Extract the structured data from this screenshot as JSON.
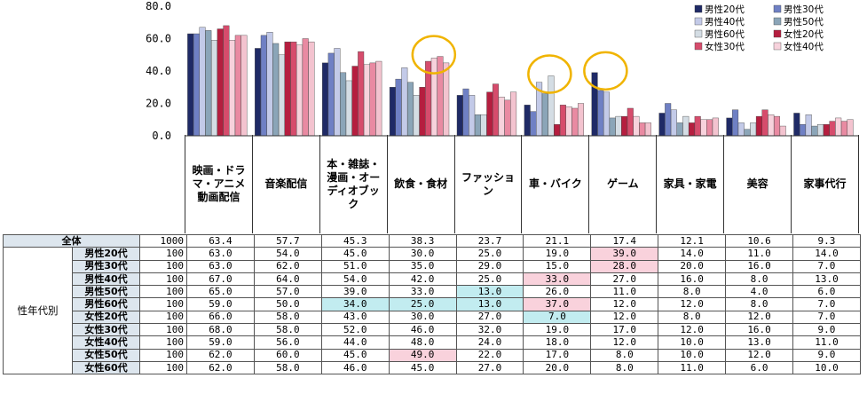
{
  "chart_data": {
    "type": "bar",
    "yticks": [
      "0.0",
      "20.0",
      "40.0",
      "60.0",
      "80.0"
    ],
    "ylim": [
      0,
      80
    ],
    "categories": [
      "映画・ドラマ・アニメ動画配信",
      "音楽配信",
      "本・雑誌・漫画・オーディオブック",
      "飲食・食材",
      "ファッション",
      "車・バイク",
      "ゲーム",
      "家具・家電",
      "美容",
      "家事代行"
    ],
    "series": [
      {
        "name": "男性20代",
        "color": "#1f2a66",
        "values": [
          63,
          54,
          45,
          30,
          25,
          19,
          39,
          14,
          11,
          14
        ]
      },
      {
        "name": "男性30代",
        "color": "#6f80c4",
        "values": [
          63,
          62,
          51,
          35,
          29,
          15,
          28,
          20,
          16,
          7
        ]
      },
      {
        "name": "男性40代",
        "color": "#c3cae8",
        "values": [
          67,
          64,
          54,
          42,
          25,
          33,
          27,
          16,
          8,
          13
        ]
      },
      {
        "name": "男性50代",
        "color": "#8ba5b8",
        "values": [
          65,
          57,
          39,
          33,
          13,
          26,
          11,
          8,
          4,
          6
        ]
      },
      {
        "name": "男性60代",
        "color": "#d4dde4",
        "values": [
          59,
          50,
          34,
          25,
          13,
          37,
          12,
          12,
          8,
          7
        ]
      },
      {
        "name": "女性20代",
        "color": "#b51e3f",
        "values": [
          66,
          58,
          43,
          30,
          27,
          7,
          12,
          8,
          12,
          7
        ]
      },
      {
        "name": "女性30代",
        "color": "#d64c6c",
        "values": [
          68,
          58,
          52,
          46,
          32,
          19,
          17,
          12,
          16,
          9
        ]
      },
      {
        "name": "女性40代",
        "color": "#f7d2dc",
        "values": [
          59,
          56,
          44,
          48,
          24,
          18,
          12,
          10,
          13,
          11
        ]
      },
      {
        "name": "",
        "color": "#e98aa2",
        "values": [
          62,
          60,
          45,
          49,
          22,
          17,
          8,
          10,
          12,
          9
        ]
      },
      {
        "name": "",
        "color": "#f3c3cf",
        "values": [
          62,
          58,
          46,
          45,
          27,
          20,
          8,
          11,
          6,
          10
        ]
      }
    ],
    "annotations": [
      {
        "category_index": 3,
        "marker": "yellow-circle"
      },
      {
        "category_index": 5,
        "marker": "yellow-circle"
      },
      {
        "category_index": 6,
        "marker": "yellow-circle"
      }
    ]
  },
  "category_labels": [
    [
      "映画・ドラ",
      "マ・アニメ",
      "動画配信"
    ],
    [
      "音楽配信"
    ],
    [
      "本・雑誌・",
      "漫画・オー",
      "ディオブッ",
      "ク"
    ],
    [
      "飲食・食材"
    ],
    [
      "ファッショ",
      "ン"
    ],
    [
      "車・バイク"
    ],
    [
      "ゲーム"
    ],
    [
      "家具・家電"
    ],
    [
      "美容"
    ],
    [
      "家事代行"
    ]
  ],
  "table": {
    "group_label": "性年代別",
    "total": {
      "label": "全体",
      "n": "1000",
      "values": [
        "63.4",
        "57.7",
        "45.3",
        "38.3",
        "23.7",
        "21.1",
        "17.4",
        "12.1",
        "10.6",
        "9.3"
      ]
    },
    "rows": [
      {
        "label": "男性20代",
        "n": "100",
        "values": [
          "63.0",
          "54.0",
          "45.0",
          "30.0",
          "25.0",
          "19.0",
          "39.0",
          "14.0",
          "11.0",
          "14.0"
        ]
      },
      {
        "label": "男性30代",
        "n": "100",
        "values": [
          "63.0",
          "62.0",
          "51.0",
          "35.0",
          "29.0",
          "15.0",
          "28.0",
          "20.0",
          "16.0",
          "7.0"
        ]
      },
      {
        "label": "男性40代",
        "n": "100",
        "values": [
          "67.0",
          "64.0",
          "54.0",
          "42.0",
          "25.0",
          "33.0",
          "27.0",
          "16.0",
          "8.0",
          "13.0"
        ]
      },
      {
        "label": "男性50代",
        "n": "100",
        "values": [
          "65.0",
          "57.0",
          "39.0",
          "33.0",
          "13.0",
          "26.0",
          "11.0",
          "8.0",
          "4.0",
          "6.0"
        ]
      },
      {
        "label": "男性60代",
        "n": "100",
        "values": [
          "59.0",
          "50.0",
          "34.0",
          "25.0",
          "13.0",
          "37.0",
          "12.0",
          "12.0",
          "8.0",
          "7.0"
        ]
      },
      {
        "label": "女性20代",
        "n": "100",
        "values": [
          "66.0",
          "58.0",
          "43.0",
          "30.0",
          "27.0",
          "7.0",
          "12.0",
          "8.0",
          "12.0",
          "7.0"
        ]
      },
      {
        "label": "女性30代",
        "n": "100",
        "values": [
          "68.0",
          "58.0",
          "52.0",
          "46.0",
          "32.0",
          "19.0",
          "17.0",
          "12.0",
          "16.0",
          "9.0"
        ]
      },
      {
        "label": "女性40代",
        "n": "100",
        "values": [
          "59.0",
          "56.0",
          "44.0",
          "48.0",
          "24.0",
          "18.0",
          "12.0",
          "10.0",
          "13.0",
          "11.0"
        ]
      },
      {
        "label": "女性50代",
        "n": "100",
        "values": [
          "62.0",
          "60.0",
          "45.0",
          "49.0",
          "22.0",
          "17.0",
          "8.0",
          "10.0",
          "12.0",
          "9.0"
        ]
      },
      {
        "label": "女性60代",
        "n": "100",
        "values": [
          "62.0",
          "58.0",
          "46.0",
          "45.0",
          "27.0",
          "20.0",
          "8.0",
          "11.0",
          "6.0",
          "10.0"
        ]
      }
    ],
    "highlights": [
      {
        "row": 0,
        "col": 6,
        "color": "pink"
      },
      {
        "row": 1,
        "col": 6,
        "color": "pink"
      },
      {
        "row": 2,
        "col": 5,
        "color": "pink"
      },
      {
        "row": 3,
        "col": 4,
        "color": "cyan"
      },
      {
        "row": 4,
        "col": 2,
        "color": "cyan"
      },
      {
        "row": 4,
        "col": 3,
        "color": "cyan"
      },
      {
        "row": 4,
        "col": 4,
        "color": "cyan"
      },
      {
        "row": 4,
        "col": 5,
        "color": "pink"
      },
      {
        "row": 5,
        "col": 5,
        "color": "cyan"
      },
      {
        "row": 8,
        "col": 3,
        "color": "pink"
      }
    ]
  }
}
